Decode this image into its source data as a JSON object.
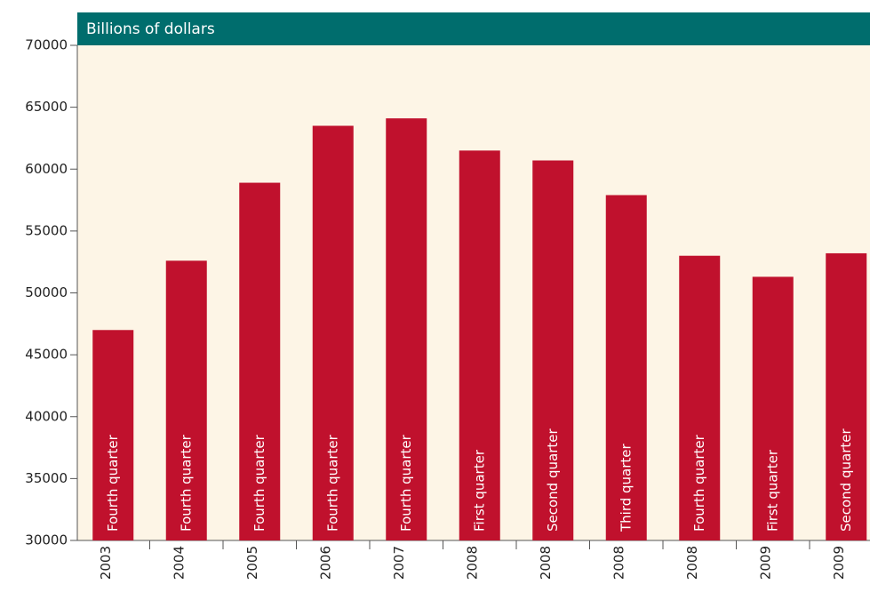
{
  "chart_data": {
    "type": "bar",
    "subtitle": "Billions of dollars",
    "categories": [
      "2003",
      "2004",
      "2005",
      "2006",
      "2007",
      "2008",
      "2008",
      "2008",
      "2008",
      "2009",
      "2009"
    ],
    "quarters": [
      "Fourth quarter",
      "Fourth quarter",
      "Fourth quarter",
      "Fourth quarter",
      "Fourth quarter",
      "First quarter",
      "Second quarter",
      "Third quarter",
      "Fourth quarter",
      "First quarter",
      "Second quarter"
    ],
    "values": [
      47000,
      52600,
      58900,
      63500,
      64100,
      61500,
      60700,
      57900,
      53000,
      51300,
      53200
    ],
    "color": "#c0112d",
    "ylim": [
      30000,
      70000
    ],
    "yticks": [
      30000,
      35000,
      40000,
      45000,
      50000,
      55000,
      60000,
      65000,
      70000
    ]
  }
}
